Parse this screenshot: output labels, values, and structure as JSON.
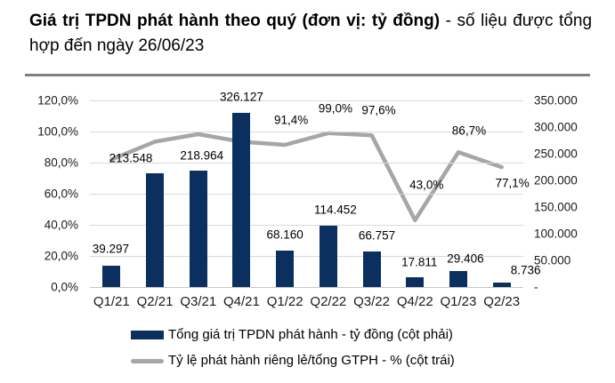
{
  "title": {
    "bold": "Giá trị TPDN phát hành theo quý (đơn vị: tỷ đồng)",
    "regular": "- số liệu được tổng hợp đến ngày 26/06/23"
  },
  "legend": {
    "bar_series": "Tổng giá trị TPDN phát hành - tỷ đồng (cột phải)",
    "line_series": "Tỷ lệ phát hành riêng lẻ/tổng GTPH - % (cột trái)"
  },
  "colors": {
    "bar": "#0b2f5f",
    "line": "#a6a6a6",
    "gridline": "#d9d9d9",
    "axis_text": "#1a1a1a",
    "title_rule": "#7f7f7f"
  },
  "chart_data": {
    "type": "bar",
    "subtype": "combo bar+line, dual axis",
    "title": "Giá trị TPDN phát hành theo quý (đơn vị: tỷ đồng) - số liệu được tổng hợp đến ngày 26/06/23",
    "categories": [
      "Q1/21",
      "Q2/21",
      "Q3/21",
      "Q4/21",
      "Q1/22",
      "Q2/22",
      "Q3/22",
      "Q4/22",
      "Q1/23",
      "Q2/23"
    ],
    "series": [
      {
        "name": "Tổng giá trị TPDN phát hành - tỷ đồng (cột phải)",
        "type": "bar",
        "axis": "right",
        "values": [
          39297,
          213548,
          218964,
          326127,
          68160,
          114452,
          66757,
          17811,
          29406,
          8736
        ],
        "labels": [
          "39.297",
          "213.548",
          "218.964",
          "326.127",
          "68.160",
          "114.452",
          "66.757",
          "17.811",
          "29.406",
          "8.736"
        ]
      },
      {
        "name": "Tỷ lệ phát hành riêng lẻ/tổng GTPH - % (cột trái)",
        "type": "line",
        "axis": "left",
        "values": [
          82.0,
          93.5,
          98.3,
          93.4,
          91.4,
          99.0,
          97.6,
          43.0,
          86.7,
          77.1
        ],
        "labels": [
          null,
          null,
          null,
          null,
          "91,4%",
          "99,0%",
          "97,6%",
          "43,0%",
          "86,7%",
          "77,1%"
        ]
      }
    ],
    "left_axis": {
      "min": 0,
      "max": 120,
      "ticks": [
        "120,0%",
        "100,0%",
        "80,0%",
        "60,0%",
        "40,0%",
        "20,0%",
        "0,0%"
      ]
    },
    "right_axis": {
      "min": 0,
      "max": 350000,
      "ticks": [
        "350.000",
        "300.000",
        "250.000",
        "200.000",
        "150.000",
        "100.000",
        "50.000",
        "-"
      ]
    },
    "grid": true,
    "legend_position": "bottom-left, stacked vertically"
  }
}
